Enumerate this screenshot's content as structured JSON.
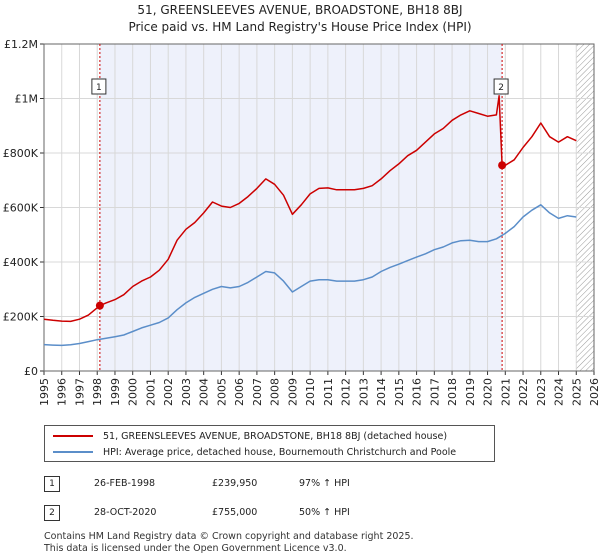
{
  "header": {
    "title_line1": "51, GREENSLEEVES AVENUE, BROADSTONE, BH18 8BJ",
    "title_line2": "Price paid vs. HM Land Registry's House Price Index (HPI)"
  },
  "chart_data": {
    "type": "line",
    "xlim": [
      1995,
      2026
    ],
    "ylim": [
      0,
      1200000
    ],
    "y_ticks": [
      {
        "value": 0,
        "label": "£0"
      },
      {
        "value": 200000,
        "label": "£200K"
      },
      {
        "value": 400000,
        "label": "£400K"
      },
      {
        "value": 600000,
        "label": "£600K"
      },
      {
        "value": 800000,
        "label": "£800K"
      },
      {
        "value": 1000000,
        "label": "£1M"
      },
      {
        "value": 1200000,
        "label": "£1.2M"
      }
    ],
    "x_ticks": [
      "1995",
      "1996",
      "1997",
      "1998",
      "1999",
      "2000",
      "2001",
      "2002",
      "2003",
      "2004",
      "2005",
      "2006",
      "2007",
      "2008",
      "2009",
      "2010",
      "2011",
      "2012",
      "2013",
      "2014",
      "2015",
      "2016",
      "2017",
      "2018",
      "2019",
      "2020",
      "2021",
      "2022",
      "2023",
      "2024",
      "2025",
      "2026"
    ],
    "grid": true,
    "shaded_ranges": [
      [
        1998.15,
        2020.82
      ]
    ],
    "hatched_from": 2025.0,
    "series": [
      {
        "name": "51, GREENSLEEVES AVENUE, BROADSTONE, BH18 8BJ (detached house)",
        "color": "#cc0000",
        "points": [
          [
            1995.0,
            190000
          ],
          [
            1995.5,
            186000
          ],
          [
            1996.0,
            183000
          ],
          [
            1996.5,
            182000
          ],
          [
            1997.0,
            190000
          ],
          [
            1997.5,
            205000
          ],
          [
            1998.15,
            239950
          ],
          [
            1998.5,
            250000
          ],
          [
            1999.0,
            262000
          ],
          [
            1999.5,
            280000
          ],
          [
            2000.0,
            310000
          ],
          [
            2000.5,
            330000
          ],
          [
            2001.0,
            345000
          ],
          [
            2001.5,
            370000
          ],
          [
            2002.0,
            410000
          ],
          [
            2002.5,
            480000
          ],
          [
            2003.0,
            520000
          ],
          [
            2003.5,
            545000
          ],
          [
            2004.0,
            580000
          ],
          [
            2004.5,
            620000
          ],
          [
            2005.0,
            605000
          ],
          [
            2005.5,
            600000
          ],
          [
            2006.0,
            615000
          ],
          [
            2006.5,
            640000
          ],
          [
            2007.0,
            670000
          ],
          [
            2007.5,
            705000
          ],
          [
            2008.0,
            685000
          ],
          [
            2008.5,
            645000
          ],
          [
            2009.0,
            575000
          ],
          [
            2009.5,
            610000
          ],
          [
            2010.0,
            650000
          ],
          [
            2010.5,
            670000
          ],
          [
            2011.0,
            672000
          ],
          [
            2011.5,
            665000
          ],
          [
            2012.0,
            665000
          ],
          [
            2012.5,
            665000
          ],
          [
            2013.0,
            670000
          ],
          [
            2013.5,
            680000
          ],
          [
            2014.0,
            705000
          ],
          [
            2014.5,
            735000
          ],
          [
            2015.0,
            760000
          ],
          [
            2015.5,
            790000
          ],
          [
            2016.0,
            810000
          ],
          [
            2016.5,
            840000
          ],
          [
            2017.0,
            870000
          ],
          [
            2017.5,
            890000
          ],
          [
            2018.0,
            920000
          ],
          [
            2018.5,
            940000
          ],
          [
            2019.0,
            955000
          ],
          [
            2019.5,
            945000
          ],
          [
            2020.0,
            935000
          ],
          [
            2020.5,
            940000
          ],
          [
            2020.65,
            1010000
          ],
          [
            2020.82,
            755000
          ],
          [
            2021.0,
            755000
          ],
          [
            2021.5,
            775000
          ],
          [
            2022.0,
            820000
          ],
          [
            2022.5,
            860000
          ],
          [
            2023.0,
            910000
          ],
          [
            2023.5,
            860000
          ],
          [
            2024.0,
            840000
          ],
          [
            2024.5,
            860000
          ],
          [
            2025.0,
            845000
          ]
        ]
      },
      {
        "name": "HPI: Average price, detached house, Bournemouth Christchurch and Poole",
        "color": "#5b8ec9",
        "points": [
          [
            1995.0,
            97000
          ],
          [
            1995.5,
            95000
          ],
          [
            1996.0,
            94000
          ],
          [
            1996.5,
            96000
          ],
          [
            1997.0,
            101000
          ],
          [
            1997.5,
            108000
          ],
          [
            1998.0,
            115000
          ],
          [
            1998.5,
            120000
          ],
          [
            1999.0,
            126000
          ],
          [
            1999.5,
            132000
          ],
          [
            2000.0,
            145000
          ],
          [
            2000.5,
            158000
          ],
          [
            2001.0,
            168000
          ],
          [
            2001.5,
            178000
          ],
          [
            2002.0,
            195000
          ],
          [
            2002.5,
            225000
          ],
          [
            2003.0,
            250000
          ],
          [
            2003.5,
            270000
          ],
          [
            2004.0,
            285000
          ],
          [
            2004.5,
            300000
          ],
          [
            2005.0,
            310000
          ],
          [
            2005.5,
            305000
          ],
          [
            2006.0,
            310000
          ],
          [
            2006.5,
            325000
          ],
          [
            2007.0,
            345000
          ],
          [
            2007.5,
            365000
          ],
          [
            2008.0,
            360000
          ],
          [
            2008.5,
            330000
          ],
          [
            2009.0,
            290000
          ],
          [
            2009.5,
            310000
          ],
          [
            2010.0,
            330000
          ],
          [
            2010.5,
            335000
          ],
          [
            2011.0,
            335000
          ],
          [
            2011.5,
            330000
          ],
          [
            2012.0,
            330000
          ],
          [
            2012.5,
            330000
          ],
          [
            2013.0,
            335000
          ],
          [
            2013.5,
            345000
          ],
          [
            2014.0,
            365000
          ],
          [
            2014.5,
            380000
          ],
          [
            2015.0,
            392000
          ],
          [
            2015.5,
            405000
          ],
          [
            2016.0,
            418000
          ],
          [
            2016.5,
            430000
          ],
          [
            2017.0,
            445000
          ],
          [
            2017.5,
            455000
          ],
          [
            2018.0,
            470000
          ],
          [
            2018.5,
            478000
          ],
          [
            2019.0,
            480000
          ],
          [
            2019.5,
            475000
          ],
          [
            2020.0,
            475000
          ],
          [
            2020.5,
            485000
          ],
          [
            2021.0,
            505000
          ],
          [
            2021.5,
            530000
          ],
          [
            2022.0,
            565000
          ],
          [
            2022.5,
            590000
          ],
          [
            2023.0,
            610000
          ],
          [
            2023.5,
            580000
          ],
          [
            2024.0,
            560000
          ],
          [
            2024.5,
            570000
          ],
          [
            2025.0,
            565000
          ]
        ]
      }
    ],
    "markers": [
      {
        "label": "1",
        "x": 1998.15,
        "price": 239950
      },
      {
        "label": "2",
        "x": 2020.82,
        "price": 755000
      }
    ]
  },
  "legend": {
    "property_label": "51, GREENSLEEVES AVENUE, BROADSTONE, BH18 8BJ (detached house)",
    "hpi_label": "HPI: Average price, detached house, Bournemouth Christchurch and Poole",
    "property_color": "#cc0000",
    "hpi_color": "#5b8ec9"
  },
  "transactions": [
    {
      "num": "1",
      "date": "26-FEB-1998",
      "price": "£239,950",
      "hpi": "97% ↑ HPI"
    },
    {
      "num": "2",
      "date": "28-OCT-2020",
      "price": "£755,000",
      "hpi": "50% ↑ HPI"
    }
  ],
  "footer": {
    "line1": "Contains HM Land Registry data © Crown copyright and database right 2025.",
    "line2": "This data is licensed under the Open Government Licence v3.0."
  }
}
